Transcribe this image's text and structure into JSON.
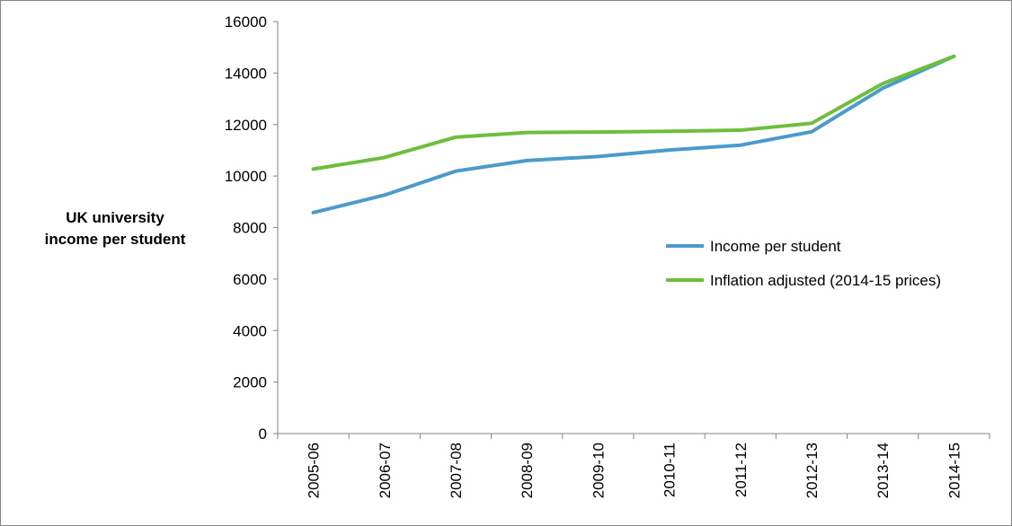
{
  "chart_data": {
    "type": "line",
    "title": "",
    "xlabel": "",
    "ylabel": [
      "UK university",
      "income per student"
    ],
    "categories": [
      "2005-06",
      "2006-07",
      "2007-08",
      "2008-09",
      "2009-10",
      "2010-11",
      "2011-12",
      "2012-13",
      "2013-14",
      "2014-15"
    ],
    "ylim": [
      0,
      16000
    ],
    "yticks": [
      0,
      2000,
      4000,
      6000,
      8000,
      10000,
      12000,
      14000,
      16000
    ],
    "grid": false,
    "legend_position": "right-middle",
    "series": [
      {
        "name": "Income per student",
        "color": "#4A9BCB",
        "values": [
          8580,
          9260,
          10190,
          10600,
          10760,
          11010,
          11200,
          11720,
          13410,
          14650
        ]
      },
      {
        "name": "Inflation adjusted (2014-15 prices)",
        "color": "#6DBF3B",
        "values": [
          10270,
          10720,
          11510,
          11690,
          11710,
          11740,
          11780,
          12050,
          13590,
          14650
        ]
      }
    ]
  }
}
